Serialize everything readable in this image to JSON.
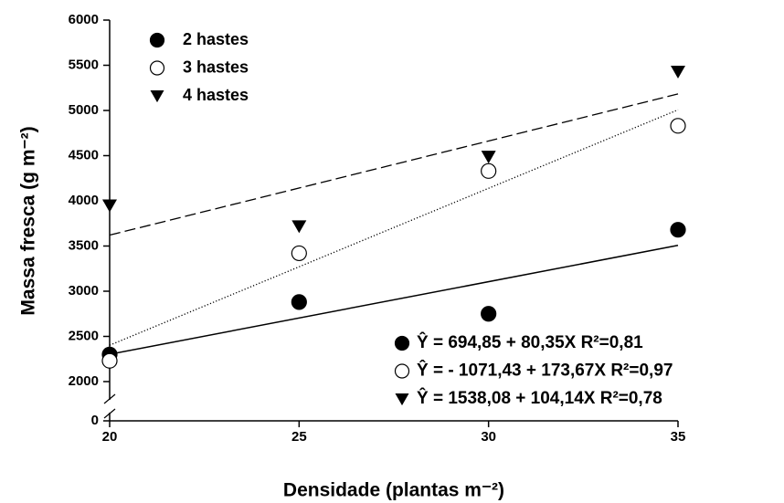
{
  "chart_data": {
    "type": "scatter",
    "xlabel": "Densidade (plantas m⁻²)",
    "ylabel": "Massa fresca (g m⁻²)",
    "x": [
      20,
      25,
      30,
      35
    ],
    "xlim": [
      20,
      35
    ],
    "xticks": [
      20,
      25,
      30,
      35
    ],
    "ylim": [
      0,
      6000
    ],
    "yticks": [
      0,
      2000,
      2500,
      3000,
      3500,
      4000,
      4500,
      5000,
      5500,
      6000
    ],
    "axis_break": true,
    "series": [
      {
        "name": "2 hastes",
        "color": "#000000",
        "marker": "filled-circle",
        "line": "solid",
        "values": [
          2300,
          2880,
          2750,
          3680
        ],
        "fit": [
          694.85,
          80.35
        ],
        "equation": "Ŷ = 694,85 + 80,35X  R²=0,81"
      },
      {
        "name": "3 hastes",
        "color": "#000000",
        "marker": "open-circle",
        "line": "dotted",
        "values": [
          2230,
          3420,
          4330,
          4830
        ],
        "fit": [
          -1071.43,
          173.67
        ],
        "equation": "Ŷ = - 1071,43 + 173,67X  R²=0,97"
      },
      {
        "name": "4 hastes",
        "color": "#000000",
        "marker": "triangle-down",
        "line": "dashed",
        "values": [
          3950,
          3720,
          4490,
          5430
        ],
        "fit": [
          1538.08,
          104.14
        ],
        "equation": "Ŷ = 1538,08 + 104,14X  R²=0,78"
      }
    ]
  }
}
